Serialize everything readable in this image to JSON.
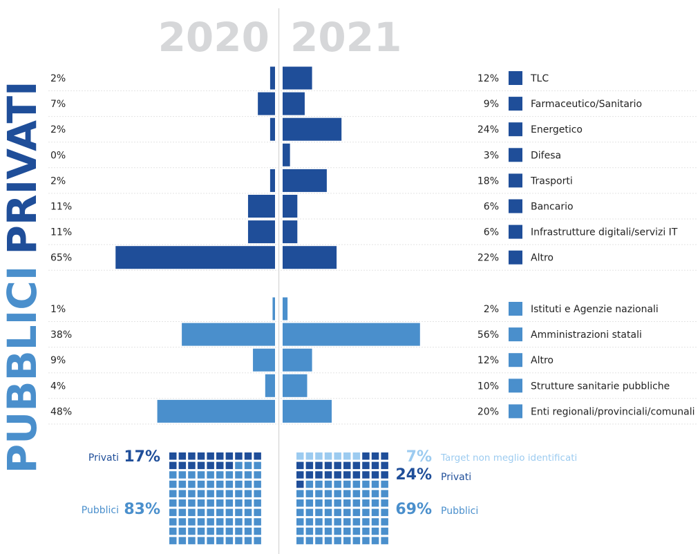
{
  "colors": {
    "privati": "#1f4e99",
    "pubblici": "#4a8fcc",
    "target": "#9ccbf0",
    "year_header": "#d6d7d9",
    "divider": "#d9d9d9",
    "row_line": "#e3e3e3",
    "text": "#222222"
  },
  "years": [
    "2020",
    "2021"
  ],
  "group_labels": {
    "privati": "PRIVATI",
    "pubblici": "PUBBLICI"
  },
  "chart_data": {
    "type": "bar",
    "orientation": "horizontal-diverging",
    "series": [
      {
        "name": "2020",
        "side": "left"
      },
      {
        "name": "2021",
        "side": "right"
      }
    ],
    "groups": [
      {
        "name": "PRIVATI",
        "categories": [
          "TLC",
          "Farmaceutico/Sanitario",
          "Energetico",
          "Difesa",
          "Trasporti",
          "Bancario",
          "Infrastrutture digitali/servizi IT",
          "Altro"
        ],
        "values_2020": [
          2,
          7,
          2,
          0,
          2,
          11,
          11,
          65
        ],
        "values_2021": [
          12,
          9,
          24,
          3,
          18,
          6,
          6,
          22
        ],
        "labels_2020": [
          "2%",
          "7%",
          "2%",
          "0%",
          "2%",
          "11%",
          "11%",
          "65%"
        ],
        "labels_2021": [
          "12%",
          "9%",
          "24%",
          "3%",
          "18%",
          "6%",
          "6%",
          "22%"
        ]
      },
      {
        "name": "PUBBLICI",
        "categories": [
          "Istituti e Agenzie nazionali",
          "Amministrazioni statali",
          "Altro",
          "Strutture sanitarie pubbliche",
          "Enti regionali/provinciali/comunali"
        ],
        "values_2020": [
          1,
          38,
          9,
          4,
          48
        ],
        "values_2021": [
          2,
          56,
          12,
          10,
          20
        ],
        "labels_2020": [
          "1%",
          "38%",
          "9%",
          "4%",
          "48%"
        ],
        "labels_2021": [
          "2%",
          "56%",
          "12%",
          "10%",
          "20%"
        ]
      }
    ],
    "waffle": [
      {
        "year": "2020",
        "segments": [
          {
            "label": "Privati",
            "value": 17,
            "value_label": "17%"
          },
          {
            "label": "Pubblici",
            "value": 83,
            "value_label": "83%"
          }
        ]
      },
      {
        "year": "2021",
        "segments": [
          {
            "label": "Target non meglio identificati",
            "value": 7,
            "value_label": "7%"
          },
          {
            "label": "Privati",
            "value": 24,
            "value_label": "24%"
          },
          {
            "label": "Pubblici",
            "value": 69,
            "value_label": "69%"
          }
        ]
      }
    ]
  }
}
